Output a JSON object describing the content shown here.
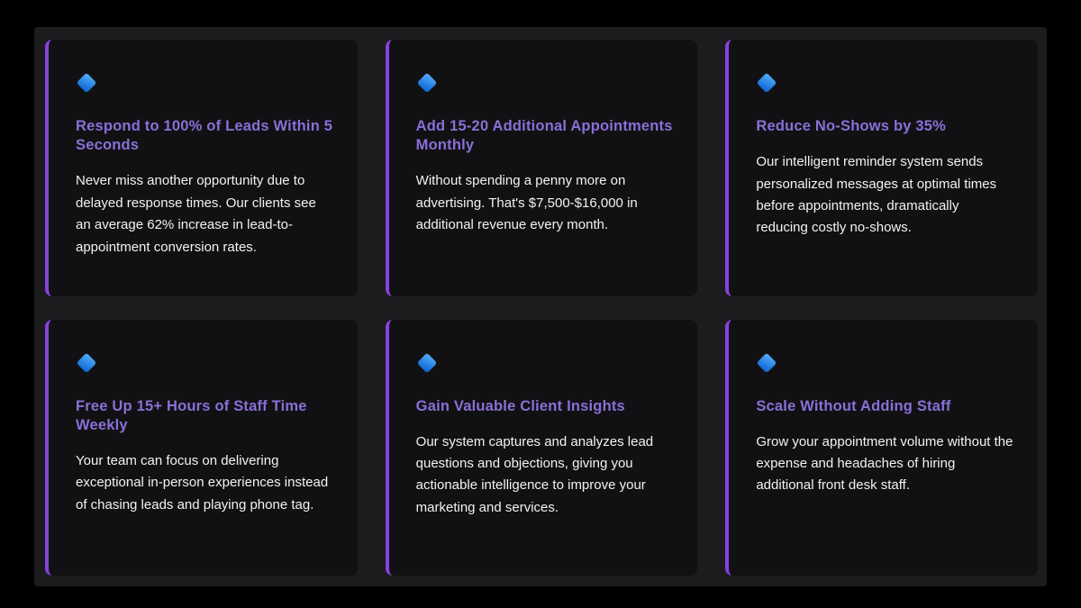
{
  "theme": {
    "surface_background": "#1c1c1e",
    "card_background": "#111113",
    "accent_border": "#8742e0",
    "heading_color": "#8a6fd8",
    "body_color": "#f2f2f2",
    "diamond_blue_light": "#5cb0f6",
    "diamond_blue_dark": "#0d5fd0"
  },
  "cards": [
    {
      "icon": "blue-diamond",
      "title": "Respond to 100% of Leads Within 5 Seconds",
      "body": "Never miss another opportunity due to delayed response times. Our clients see an average 62% increase in lead-to-appointment conversion rates."
    },
    {
      "icon": "blue-diamond",
      "title": "Add 15-20 Additional Appointments Monthly",
      "body": "Without spending a penny more on advertising. That's $7,500-$16,000 in additional revenue every month."
    },
    {
      "icon": "blue-diamond",
      "title": "Reduce No-Shows by 35%",
      "body": "Our intelligent reminder system sends personalized messages at optimal times before appointments, dramatically reducing costly no-shows."
    },
    {
      "icon": "blue-diamond",
      "title": "Free Up 15+ Hours of Staff Time Weekly",
      "body": "Your team can focus on delivering exceptional in-person experiences instead of chasing leads and playing phone tag."
    },
    {
      "icon": "blue-diamond",
      "title": "Gain Valuable Client Insights",
      "body": "Our system captures and analyzes lead questions and objections, giving you actionable intelligence to improve your marketing and services."
    },
    {
      "icon": "blue-diamond",
      "title": "Scale Without Adding Staff",
      "body": "Grow your appointment volume without the expense and headaches of hiring additional front desk staff."
    }
  ]
}
